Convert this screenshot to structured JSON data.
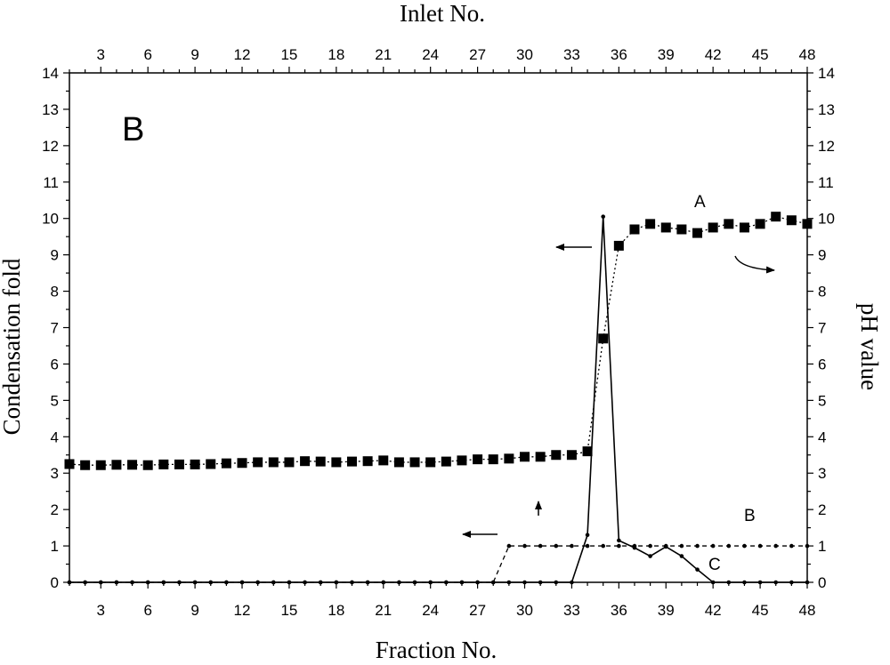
{
  "chart_data": {
    "type": "line",
    "panel_label": "B",
    "xlabel": "Fraction No.",
    "x2label": "Inlet No.",
    "ylabel": "Condensation fold",
    "y2label": "pH value",
    "xlim": [
      1,
      48
    ],
    "ylim": [
      0,
      14
    ],
    "y2lim": [
      0,
      14
    ],
    "xticks": [
      3,
      6,
      9,
      12,
      15,
      18,
      21,
      24,
      27,
      30,
      33,
      36,
      39,
      42,
      45,
      48
    ],
    "yticks": [
      0,
      1,
      2,
      3,
      4,
      5,
      6,
      7,
      8,
      9,
      10,
      11,
      12,
      13,
      14
    ],
    "series": [
      {
        "name": "A",
        "axis": "right",
        "style": "square-markers-dotted",
        "x": [
          1,
          2,
          3,
          4,
          5,
          6,
          7,
          8,
          9,
          10,
          11,
          12,
          13,
          14,
          15,
          16,
          17,
          18,
          19,
          20,
          21,
          22,
          23,
          24,
          25,
          26,
          27,
          28,
          29,
          30,
          31,
          32,
          33,
          34,
          35,
          36,
          37,
          38,
          39,
          40,
          41,
          42,
          43,
          44,
          45,
          46,
          47,
          48
        ],
        "values": [
          3.25,
          3.22,
          3.22,
          3.23,
          3.23,
          3.22,
          3.24,
          3.24,
          3.24,
          3.25,
          3.27,
          3.28,
          3.3,
          3.3,
          3.3,
          3.33,
          3.32,
          3.3,
          3.32,
          3.33,
          3.35,
          3.3,
          3.3,
          3.3,
          3.32,
          3.35,
          3.38,
          3.38,
          3.4,
          3.45,
          3.45,
          3.5,
          3.5,
          3.6,
          6.7,
          9.25,
          9.7,
          9.85,
          9.75,
          9.7,
          9.6,
          9.75,
          9.85,
          9.75,
          9.85,
          10.05,
          9.95,
          9.85
        ]
      },
      {
        "name": "B",
        "axis": "left",
        "style": "dot-markers-dashed",
        "x": [
          1,
          2,
          3,
          4,
          5,
          6,
          7,
          8,
          9,
          10,
          11,
          12,
          13,
          14,
          15,
          16,
          17,
          18,
          19,
          20,
          21,
          22,
          23,
          24,
          25,
          26,
          27,
          28,
          29,
          30,
          31,
          32,
          33,
          34,
          35,
          36,
          37,
          38,
          39,
          40,
          41,
          42,
          43,
          44,
          45,
          46,
          47,
          48
        ],
        "values": [
          0,
          0,
          0,
          0,
          0,
          0,
          0,
          0,
          0,
          0,
          0,
          0,
          0,
          0,
          0,
          0,
          0,
          0,
          0,
          0,
          0,
          0,
          0,
          0,
          0,
          0,
          0,
          0,
          1,
          1,
          1,
          1,
          1,
          1,
          1,
          1,
          1,
          1,
          1,
          1,
          1,
          1,
          1,
          1,
          1,
          1,
          1,
          1
        ]
      },
      {
        "name": "C",
        "axis": "left",
        "style": "dot-markers-solid",
        "x": [
          1,
          2,
          3,
          4,
          5,
          6,
          7,
          8,
          9,
          10,
          11,
          12,
          13,
          14,
          15,
          16,
          17,
          18,
          19,
          20,
          21,
          22,
          23,
          24,
          25,
          26,
          27,
          28,
          29,
          30,
          31,
          32,
          33,
          34,
          35,
          36,
          37,
          38,
          39,
          40,
          41,
          42,
          43,
          44,
          45,
          46,
          47,
          48
        ],
        "values": [
          0,
          0,
          0,
          0,
          0,
          0,
          0,
          0,
          0,
          0,
          0,
          0,
          0,
          0,
          0,
          0,
          0,
          0,
          0,
          0,
          0,
          0,
          0,
          0,
          0,
          0,
          0,
          0,
          0,
          0,
          0,
          0,
          0,
          1.3,
          10.05,
          1.15,
          0.95,
          0.72,
          0.98,
          0.72,
          0.35,
          0,
          0,
          0,
          0,
          0,
          0,
          0
        ]
      }
    ],
    "annotations": [
      {
        "type": "arrow",
        "direction": "left",
        "points_to_axis": "left",
        "near_series": "C"
      },
      {
        "type": "arrow",
        "direction": "right",
        "points_to_axis": "right",
        "near_series": "A"
      },
      {
        "type": "arrow",
        "direction": "left",
        "points_to_axis": "left",
        "near_series": "B"
      },
      {
        "type": "arrow",
        "direction": "up",
        "near_series": "B"
      }
    ],
    "grid": false,
    "legend": "none"
  }
}
